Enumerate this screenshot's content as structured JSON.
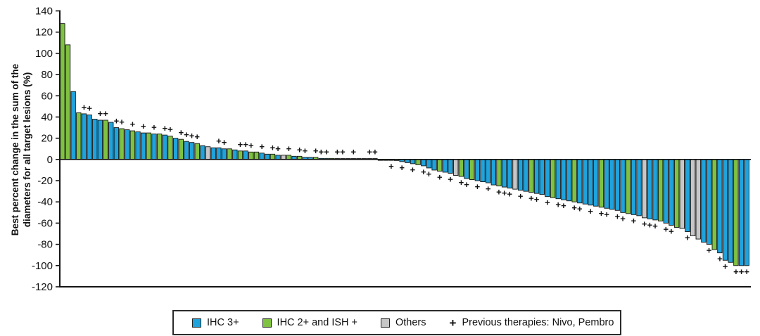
{
  "figure": {
    "ylabel_line1": "Best percent change in the sum of the",
    "ylabel_line2": "diameters for all target lesions (%)"
  },
  "legend": {
    "items": [
      {
        "label": "IHC 3+",
        "color": "#1FA3DC",
        "type": "swatch"
      },
      {
        "label": "IHC 2+ and ISH +",
        "color": "#7FC242",
        "type": "swatch"
      },
      {
        "label": "Others",
        "color": "#C7C7C7",
        "type": "swatch"
      },
      {
        "label": "Previous therapies: Nivo, Pembro",
        "symbol": "+",
        "type": "marker"
      }
    ]
  },
  "chart_data": {
    "type": "bar",
    "subtype": "waterfall",
    "title": "",
    "xlabel": "",
    "ylabel": "Best percent change in the sum of the diameters for all target lesions (%)",
    "ylim": [
      -120,
      140
    ],
    "y_ticks": [
      140,
      120,
      100,
      80,
      60,
      40,
      20,
      0,
      -20,
      -40,
      -60,
      -80,
      -100,
      -120
    ],
    "grid": false,
    "legend_position": "bottom",
    "colors": {
      "b": "#1FA3DC",
      "g": "#7FC242",
      "o": "#C7C7C7"
    },
    "color_meaning": {
      "b": "IHC 3+",
      "g": "IHC 2+ and ISH +",
      "o": "Others"
    },
    "plus_marker_meaning": "Previous therapies: Nivo, Pembro",
    "bar_format": "[best_percent_change, color_code, previous_therapy_flag]",
    "bars": [
      [
        128,
        "g",
        0
      ],
      [
        108,
        "g",
        0
      ],
      [
        64,
        "b",
        0
      ],
      [
        44,
        "g",
        0
      ],
      [
        43,
        "b",
        1
      ],
      [
        42,
        "b",
        1
      ],
      [
        38,
        "b",
        0
      ],
      [
        37,
        "b",
        1
      ],
      [
        37,
        "g",
        1
      ],
      [
        35,
        "b",
        0
      ],
      [
        30,
        "b",
        1
      ],
      [
        29,
        "g",
        1
      ],
      [
        28,
        "b",
        0
      ],
      [
        27,
        "g",
        1
      ],
      [
        26,
        "b",
        0
      ],
      [
        25,
        "b",
        1
      ],
      [
        25,
        "g",
        0
      ],
      [
        24,
        "b",
        1
      ],
      [
        24,
        "g",
        0
      ],
      [
        23,
        "b",
        1
      ],
      [
        22,
        "g",
        1
      ],
      [
        20,
        "b",
        0
      ],
      [
        19,
        "g",
        1
      ],
      [
        17,
        "b",
        1
      ],
      [
        16,
        "b",
        1
      ],
      [
        15,
        "g",
        1
      ],
      [
        13,
        "b",
        0
      ],
      [
        12,
        "o",
        0
      ],
      [
        11,
        "b",
        0
      ],
      [
        11,
        "b",
        1
      ],
      [
        10,
        "b",
        1
      ],
      [
        10,
        "g",
        0
      ],
      [
        9,
        "b",
        0
      ],
      [
        8,
        "g",
        1
      ],
      [
        8,
        "b",
        1
      ],
      [
        7,
        "g",
        1
      ],
      [
        7,
        "g",
        0
      ],
      [
        6,
        "b",
        1
      ],
      [
        5,
        "b",
        0
      ],
      [
        5,
        "g",
        1
      ],
      [
        4,
        "b",
        1
      ],
      [
        4,
        "o",
        0
      ],
      [
        4,
        "g",
        1
      ],
      [
        3,
        "b",
        0
      ],
      [
        3,
        "g",
        1
      ],
      [
        2,
        "b",
        1
      ],
      [
        2,
        "b",
        0
      ],
      [
        2,
        "g",
        1
      ],
      [
        1,
        "b",
        1
      ],
      [
        1,
        "b",
        1
      ],
      [
        1,
        "g",
        0
      ],
      [
        0.5,
        "b",
        1
      ],
      [
        0.5,
        "g",
        1
      ],
      [
        0.5,
        "b",
        0
      ],
      [
        0.5,
        "b",
        1
      ],
      [
        0.5,
        "g",
        0
      ],
      [
        0,
        "o",
        0
      ],
      [
        0,
        "b",
        1
      ],
      [
        0,
        "b",
        1
      ],
      [
        -0.5,
        "b",
        0
      ],
      [
        -0.5,
        "g",
        0
      ],
      [
        -0.5,
        "b",
        1
      ],
      [
        -1,
        "g",
        0
      ],
      [
        -2,
        "b",
        1
      ],
      [
        -3,
        "b",
        0
      ],
      [
        -4,
        "b",
        1
      ],
      [
        -5,
        "g",
        0
      ],
      [
        -6,
        "b",
        1
      ],
      [
        -8,
        "b",
        1
      ],
      [
        -10,
        "b",
        0
      ],
      [
        -11,
        "g",
        1
      ],
      [
        -12,
        "b",
        0
      ],
      [
        -13,
        "b",
        1
      ],
      [
        -15,
        "o",
        0
      ],
      [
        -16,
        "g",
        1
      ],
      [
        -18,
        "b",
        1
      ],
      [
        -19,
        "g",
        0
      ],
      [
        -20,
        "b",
        1
      ],
      [
        -21,
        "b",
        0
      ],
      [
        -22,
        "b",
        1
      ],
      [
        -24,
        "b",
        0
      ],
      [
        -25,
        "g",
        1
      ],
      [
        -26,
        "b",
        1
      ],
      [
        -27,
        "b",
        1
      ],
      [
        -28,
        "o",
        0
      ],
      [
        -29,
        "b",
        1
      ],
      [
        -30,
        "b",
        0
      ],
      [
        -31,
        "g",
        1
      ],
      [
        -32,
        "b",
        1
      ],
      [
        -33,
        "b",
        0
      ],
      [
        -35,
        "b",
        1
      ],
      [
        -36,
        "g",
        0
      ],
      [
        -37,
        "b",
        1
      ],
      [
        -38,
        "b",
        1
      ],
      [
        -39,
        "b",
        0
      ],
      [
        -40,
        "g",
        1
      ],
      [
        -41,
        "b",
        1
      ],
      [
        -42,
        "b",
        0
      ],
      [
        -43,
        "b",
        1
      ],
      [
        -44,
        "b",
        0
      ],
      [
        -45,
        "g",
        1
      ],
      [
        -46,
        "b",
        1
      ],
      [
        -47,
        "b",
        0
      ],
      [
        -48,
        "b",
        1
      ],
      [
        -50,
        "b",
        1
      ],
      [
        -51,
        "g",
        0
      ],
      [
        -52,
        "b",
        1
      ],
      [
        -53,
        "b",
        0
      ],
      [
        -55,
        "o",
        1
      ],
      [
        -56,
        "b",
        1
      ],
      [
        -57,
        "b",
        1
      ],
      [
        -58,
        "g",
        0
      ],
      [
        -60,
        "b",
        1
      ],
      [
        -62,
        "b",
        1
      ],
      [
        -64,
        "g",
        0
      ],
      [
        -65,
        "o",
        0
      ],
      [
        -68,
        "b",
        1
      ],
      [
        -72,
        "o",
        0
      ],
      [
        -75,
        "o",
        0
      ],
      [
        -78,
        "b",
        0
      ],
      [
        -80,
        "b",
        1
      ],
      [
        -85,
        "g",
        0
      ],
      [
        -88,
        "b",
        1
      ],
      [
        -95,
        "b",
        1
      ],
      [
        -97,
        "b",
        0
      ],
      [
        -100,
        "g",
        1
      ],
      [
        -100,
        "b",
        1
      ],
      [
        -100,
        "b",
        1
      ]
    ]
  }
}
